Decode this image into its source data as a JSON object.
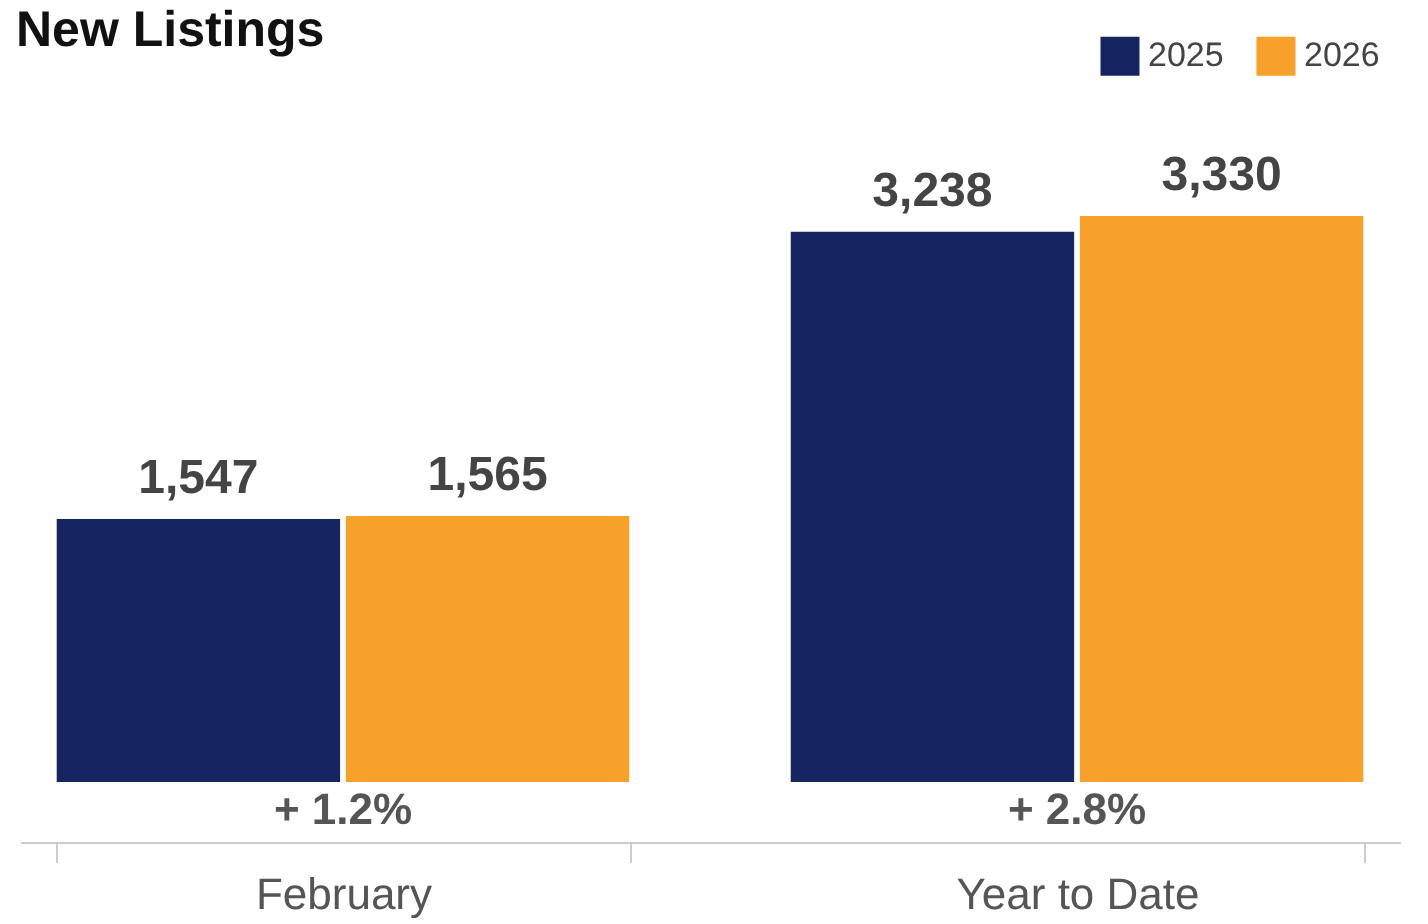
{
  "chart_data": {
    "type": "bar",
    "title": "New Listings",
    "categories": [
      "February",
      "Year to Date"
    ],
    "series": [
      {
        "name": "2025",
        "color": "#172462",
        "values": [
          1547,
          3238
        ],
        "value_labels": [
          "1,547",
          "3,238"
        ]
      },
      {
        "name": "2026",
        "color": "#f7a12b",
        "values": [
          1565,
          3330
        ],
        "value_labels": [
          "1,565",
          "3,330"
        ]
      }
    ],
    "grid": false,
    "legend": "top right",
    "annotations": [
      "+ 1.2%",
      "+ 2.8%"
    ]
  }
}
